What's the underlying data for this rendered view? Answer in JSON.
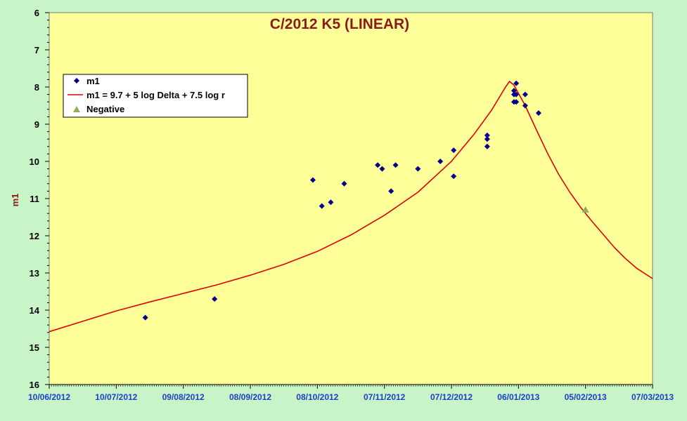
{
  "chart_data": {
    "type": "scatter",
    "title": "C/2012 K5 (LINEAR)",
    "ylabel": "m1",
    "xlabel": "",
    "x_tick_labels": [
      "10/06/2012",
      "10/07/2012",
      "09/08/2012",
      "08/09/2012",
      "08/10/2012",
      "07/11/2012",
      "07/12/2012",
      "06/01/2013",
      "05/02/2013",
      "07/03/2013"
    ],
    "xlim": [
      "2012-06-10",
      "2013-03-07"
    ],
    "ylim": [
      16,
      6
    ],
    "y_inverted": true,
    "y_ticks": [
      6,
      7,
      8,
      9,
      10,
      11,
      12,
      13,
      14,
      15,
      16
    ],
    "grid": false,
    "legend_position": "top-left",
    "series": [
      {
        "name": "m1",
        "kind": "scatter",
        "marker": "diamond",
        "color": "#00008b",
        "points": [
          [
            "2012-07-23",
            14.2
          ],
          [
            "2012-08-23",
            13.7
          ],
          [
            "2012-10-06",
            10.5
          ],
          [
            "2012-10-10",
            11.2
          ],
          [
            "2012-10-14",
            11.1
          ],
          [
            "2012-10-20",
            10.6
          ],
          [
            "2012-11-04",
            10.1
          ],
          [
            "2012-11-06",
            10.2
          ],
          [
            "2012-11-10",
            10.8
          ],
          [
            "2012-11-12",
            10.1
          ],
          [
            "2012-11-22",
            10.2
          ],
          [
            "2012-12-02",
            10.0
          ],
          [
            "2012-12-08",
            9.7
          ],
          [
            "2012-12-08",
            10.4
          ],
          [
            "2012-12-23",
            9.3
          ],
          [
            "2012-12-23",
            9.4
          ],
          [
            "2012-12-23",
            9.6
          ],
          [
            "2013-01-04",
            8.1
          ],
          [
            "2013-01-04",
            8.2
          ],
          [
            "2013-01-04",
            8.4
          ],
          [
            "2013-01-05",
            7.9
          ],
          [
            "2013-01-05",
            8.2
          ],
          [
            "2013-01-05",
            8.4
          ],
          [
            "2013-01-09",
            8.2
          ],
          [
            "2013-01-09",
            8.5
          ],
          [
            "2013-01-15",
            8.7
          ]
        ]
      },
      {
        "name": "m1 = 9.7 + 5 log Delta + 7.5 log r",
        "kind": "line",
        "color": "#e00000",
        "points": [
          [
            "2012-06-10",
            14.58
          ],
          [
            "2012-06-25",
            14.3
          ],
          [
            "2012-07-10",
            14.02
          ],
          [
            "2012-07-25",
            13.78
          ],
          [
            "2012-08-09",
            13.55
          ],
          [
            "2012-08-24",
            13.32
          ],
          [
            "2012-09-08",
            13.06
          ],
          [
            "2012-09-23",
            12.77
          ],
          [
            "2012-10-08",
            12.42
          ],
          [
            "2012-10-23",
            11.98
          ],
          [
            "2012-11-07",
            11.45
          ],
          [
            "2012-11-22",
            10.83
          ],
          [
            "2012-12-07",
            10.0
          ],
          [
            "2012-12-17",
            9.28
          ],
          [
            "2012-12-25",
            8.62
          ],
          [
            "2012-12-31",
            8.02
          ],
          [
            "2013-01-02",
            7.85
          ],
          [
            "2013-01-04",
            7.95
          ],
          [
            "2013-01-09",
            8.5
          ],
          [
            "2013-01-14",
            9.15
          ],
          [
            "2013-01-19",
            9.78
          ],
          [
            "2013-01-24",
            10.35
          ],
          [
            "2013-01-29",
            10.83
          ],
          [
            "2013-02-03",
            11.25
          ],
          [
            "2013-02-08",
            11.62
          ],
          [
            "2013-02-13",
            11.97
          ],
          [
            "2013-02-18",
            12.32
          ],
          [
            "2013-02-23",
            12.62
          ],
          [
            "2013-02-28",
            12.88
          ],
          [
            "2013-03-07",
            13.15
          ]
        ]
      },
      {
        "name": "Negative",
        "kind": "scatter",
        "marker": "triangle",
        "color": "#8fae5a",
        "points": [
          [
            "2013-02-05",
            11.3
          ]
        ]
      }
    ]
  }
}
